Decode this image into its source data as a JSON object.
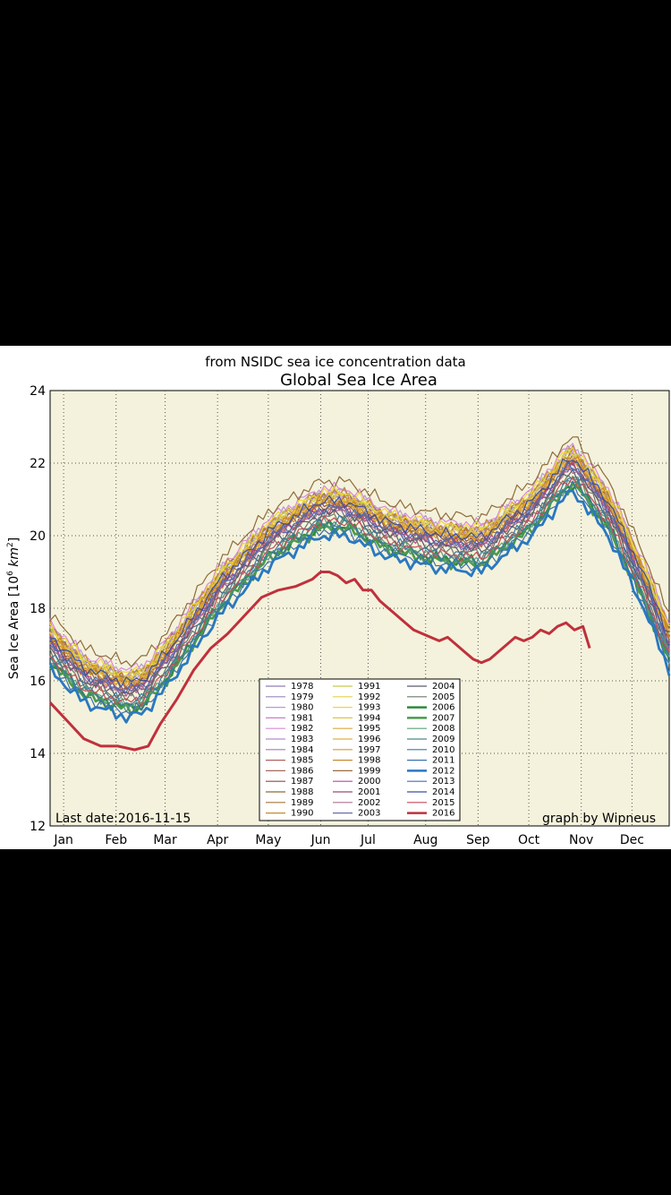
{
  "chart_data": {
    "type": "line",
    "subtitle": "from NSIDC sea ice concentration data",
    "title": "Global Sea Ice Area",
    "ylabel_prefix": "Sea Ice Area [10",
    "ylabel_exp": "6",
    "ylabel_unit": " km",
    "ylabel_exp2": "2",
    "ylabel_suffix": "]",
    "ylim": [
      12,
      24
    ],
    "yticks": [
      12,
      14,
      16,
      18,
      20,
      22,
      24
    ],
    "xlim": [
      0,
      366
    ],
    "months": [
      {
        "label": "Jan",
        "day": 8
      },
      {
        "label": "Feb",
        "day": 39
      },
      {
        "label": "Mar",
        "day": 68
      },
      {
        "label": "Apr",
        "day": 99
      },
      {
        "label": "May",
        "day": 129
      },
      {
        "label": "Jun",
        "day": 160
      },
      {
        "label": "Jul",
        "day": 188
      },
      {
        "label": "Aug",
        "day": 222
      },
      {
        "label": "Sep",
        "day": 253
      },
      {
        "label": "Oct",
        "day": 283
      },
      {
        "label": "Nov",
        "day": 314
      },
      {
        "label": "Dec",
        "day": 344
      }
    ],
    "grid": true,
    "background": "#f4f2dc",
    "legend_position": "bottom-center",
    "annotation_left": "Last date:2016-11-15",
    "annotation_right": "graph by Wipneus",
    "climatology": {
      "days": [
        0,
        20,
        45,
        55,
        70,
        100,
        130,
        160,
        175,
        200,
        230,
        255,
        285,
        305,
        310,
        330,
        350,
        366
      ],
      "values": [
        16.9,
        16.0,
        15.6,
        15.7,
        16.5,
        18.4,
        19.8,
        20.6,
        20.6,
        20.0,
        19.7,
        19.6,
        20.6,
        21.7,
        21.8,
        20.6,
        18.7,
        16.9
      ]
    },
    "series": [
      {
        "name": "1978",
        "color": "#8d7fb7",
        "offset": 0.45
      },
      {
        "name": "1979",
        "color": "#9a86c2",
        "offset": 0.55
      },
      {
        "name": "1980",
        "color": "#b49ccf",
        "offset": 0.6
      },
      {
        "name": "1981",
        "color": "#c87fc8",
        "offset": 0.45
      },
      {
        "name": "1982",
        "color": "#d98ad8",
        "offset": 0.7
      },
      {
        "name": "1983",
        "color": "#b78bd0",
        "offset": 0.5
      },
      {
        "name": "1984",
        "color": "#a679b8",
        "offset": 0.35
      },
      {
        "name": "1985",
        "color": "#b0605e",
        "offset": 0.3
      },
      {
        "name": "1986",
        "color": "#a56a5a",
        "offset": 0.4
      },
      {
        "name": "1987",
        "color": "#8b4a45",
        "offset": 0.25
      },
      {
        "name": "1988",
        "color": "#8e6b3b",
        "offset": 0.9
      },
      {
        "name": "1989",
        "color": "#a5773a",
        "offset": 0.5
      },
      {
        "name": "1990",
        "color": "#c88a2e",
        "offset": 0.55
      },
      {
        "name": "1991",
        "color": "#c6cc4a",
        "offset": 0.5
      },
      {
        "name": "1992",
        "color": "#e4d24a",
        "offset": 0.45
      },
      {
        "name": "1993",
        "color": "#f0d830",
        "offset": 0.6
      },
      {
        "name": "1994",
        "color": "#e8c23a",
        "offset": 0.35
      },
      {
        "name": "1995",
        "color": "#dca83a",
        "offset": 0.4
      },
      {
        "name": "1996",
        "color": "#e0b040",
        "offset": 0.3
      },
      {
        "name": "1997",
        "color": "#d49a2e",
        "offset": 0.25
      },
      {
        "name": "1998",
        "color": "#c9882a",
        "offset": 0.35
      },
      {
        "name": "1999",
        "color": "#9a6a3e",
        "offset": 0.2
      },
      {
        "name": "2000",
        "color": "#b84a8a",
        "offset": 0.1
      },
      {
        "name": "2001",
        "color": "#9c4a7a",
        "offset": 0.15
      },
      {
        "name": "2002",
        "color": "#b07090",
        "offset": 0.05
      },
      {
        "name": "2003",
        "color": "#6a6aa8",
        "offset": 0.1
      },
      {
        "name": "2004",
        "color": "#5a5a6a",
        "offset": 0.0
      },
      {
        "name": "2005",
        "color": "#6a7a6a",
        "offset": -0.1
      },
      {
        "name": "2006",
        "color": "#2f8a3a",
        "offset": -0.35,
        "width": 2.6
      },
      {
        "name": "2007",
        "color": "#4a9a4a",
        "offset": -0.4,
        "width": 2.6
      },
      {
        "name": "2008",
        "color": "#5aa07a",
        "offset": -0.25
      },
      {
        "name": "2009",
        "color": "#4a8a8a",
        "offset": -0.3
      },
      {
        "name": "2010",
        "color": "#3a7aa0",
        "offset": -0.2
      },
      {
        "name": "2011",
        "color": "#3a70b0",
        "offset": -0.45
      },
      {
        "name": "2012",
        "color": "#2a78c0",
        "offset": -0.6,
        "width": 2.8
      },
      {
        "name": "2013",
        "color": "#4a6ab0",
        "offset": 0.15
      },
      {
        "name": "2014",
        "color": "#3a50a0",
        "offset": 0.35
      },
      {
        "name": "2015",
        "color": "#c44a5a",
        "offset": -0.2
      },
      {
        "name": "2016",
        "color": "#c0303c",
        "width": 3.0,
        "x": [
          0,
          10,
          20,
          30,
          40,
          50,
          58,
          65,
          75,
          85,
          95,
          105,
          115,
          125,
          135,
          145,
          155,
          160,
          165,
          170,
          175,
          180,
          185,
          190,
          195,
          200,
          205,
          210,
          215,
          220,
          225,
          230,
          235,
          240,
          245,
          250,
          255,
          260,
          265,
          270,
          275,
          280,
          285,
          290,
          295,
          300,
          305,
          310,
          315,
          319
        ],
        "values": [
          15.4,
          14.9,
          14.4,
          14.2,
          14.2,
          14.1,
          14.2,
          14.8,
          15.5,
          16.3,
          16.9,
          17.3,
          17.8,
          18.3,
          18.5,
          18.6,
          18.8,
          19.0,
          19.0,
          18.9,
          18.7,
          18.8,
          18.5,
          18.5,
          18.2,
          18.0,
          17.8,
          17.6,
          17.4,
          17.3,
          17.2,
          17.1,
          17.2,
          17.0,
          16.8,
          16.6,
          16.5,
          16.6,
          16.8,
          17.0,
          17.2,
          17.1,
          17.2,
          17.4,
          17.3,
          17.5,
          17.6,
          17.4,
          17.5,
          16.9
        ]
      }
    ]
  }
}
